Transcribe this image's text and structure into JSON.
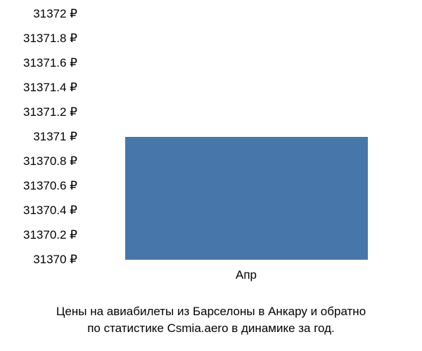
{
  "chart": {
    "type": "bar",
    "categories": [
      "Апр"
    ],
    "values": [
      31371
    ],
    "ymin": 31370,
    "ymax": 31372,
    "ytick_step": 0.2,
    "ytick_labels": [
      "31372 ₽",
      "31371.8 ₽",
      "31371.6 ₽",
      "31371.4 ₽",
      "31371.2 ₽",
      "31371 ₽",
      "31370.8 ₽",
      "31370.6 ₽",
      "31370.4 ₽",
      "31370.2 ₽",
      "31370 ₽"
    ],
    "ytick_values": [
      31372,
      31371.8,
      31371.6,
      31371.4,
      31371.2,
      31371,
      31370.8,
      31370.6,
      31370.4,
      31370.2,
      31370
    ],
    "bar_color": "#4776ab",
    "bar_width_ratio": 0.75,
    "background_color": "#ffffff",
    "text_color": "#000000",
    "label_fontsize": 17,
    "caption_fontsize": 17
  },
  "caption": {
    "line1": "Цены на авиабилеты из Барселоны в Анкару и обратно",
    "line2": "по статистике Csmia.aero в динамике за год."
  }
}
